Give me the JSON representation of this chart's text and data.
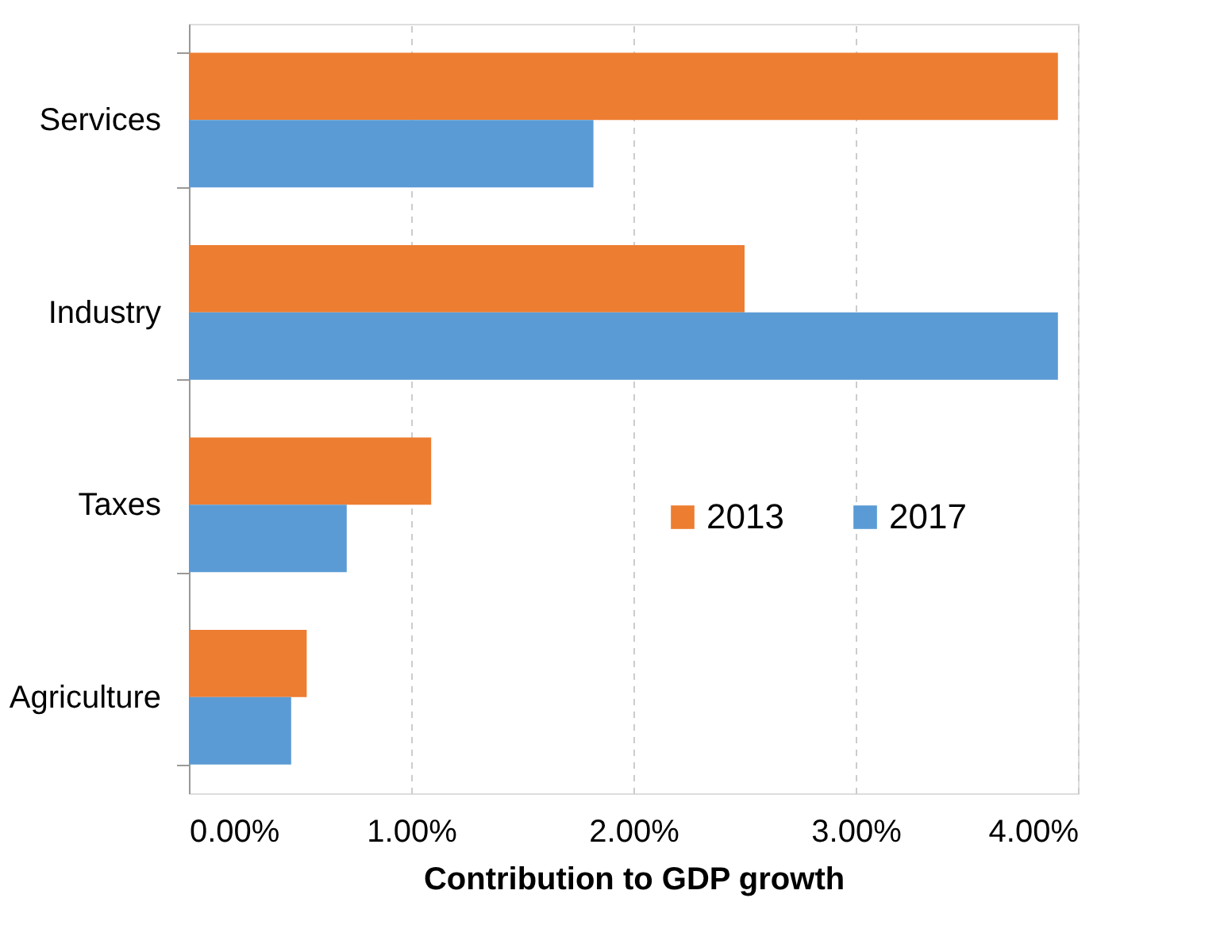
{
  "chart_data": {
    "type": "bar",
    "orientation": "horizontal",
    "xlabel": "Contribution to GDP growth",
    "categories": [
      "Services",
      "Industry",
      "Taxes",
      "Agriculture"
    ],
    "series": [
      {
        "name": "2013",
        "color": "#ed7d31",
        "values": [
          3.91,
          2.5,
          1.09,
          0.53
        ]
      },
      {
        "name": "2017",
        "color": "#5b9bd5",
        "values": [
          1.82,
          3.91,
          0.71,
          0.46
        ]
      }
    ],
    "xlim": [
      0,
      4
    ],
    "xticks": [
      {
        "value": 0,
        "label": "0.00%"
      },
      {
        "value": 1,
        "label": "1.00%"
      },
      {
        "value": 2,
        "label": "2.00%"
      },
      {
        "value": 3,
        "label": "3.00%"
      },
      {
        "value": 4,
        "label": "4.00%"
      }
    ],
    "grid": "x",
    "legend": "right"
  }
}
